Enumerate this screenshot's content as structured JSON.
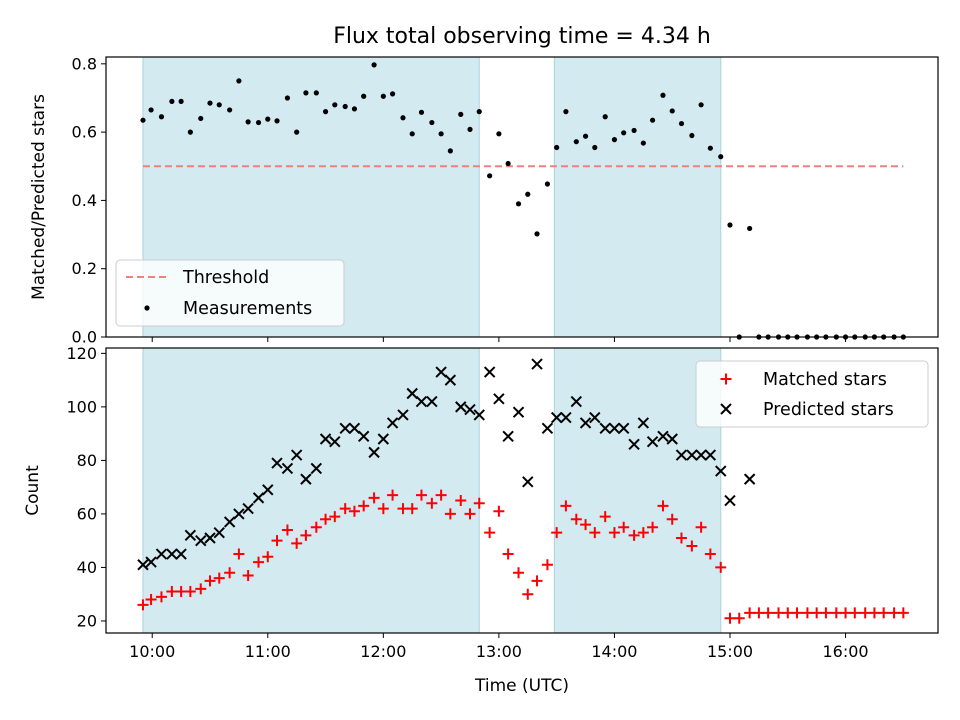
{
  "chart_data": {
    "title": "Flux total observing time = 4.34 h",
    "xlabel": "Time (UTC)",
    "x_ticks": [
      "10:00",
      "11:00",
      "12:00",
      "13:00",
      "14:00",
      "15:00",
      "16:00"
    ],
    "x_tick_values": [
      10,
      11,
      12,
      13,
      14,
      15,
      16
    ],
    "xlim": [
      9.6,
      16.8
    ],
    "shaded_intervals": [
      [
        9.92,
        12.83
      ],
      [
        13.48,
        14.92
      ]
    ],
    "shade_color": "#d2eaf0",
    "panels": [
      {
        "type": "scatter",
        "ylabel": "Matched/Predicted stars",
        "ylim": [
          0,
          0.82
        ],
        "y_ticks": [
          "0.0",
          "0.2",
          "0.4",
          "0.6",
          "0.8"
        ],
        "y_tick_values": [
          0,
          0.2,
          0.4,
          0.6,
          0.8
        ],
        "legend_position": "lower-left",
        "threshold": {
          "name": "Threshold",
          "value": 0.5,
          "x_range": [
            9.92,
            16.5
          ],
          "color": "#f08080"
        },
        "series": [
          {
            "name": "Measurements",
            "color": "#000000",
            "marker": "dot",
            "x": [
              9.92,
              9.99,
              10.08,
              10.17,
              10.25,
              10.33,
              10.42,
              10.5,
              10.58,
              10.67,
              10.75,
              10.83,
              10.92,
              11.0,
              11.08,
              11.17,
              11.25,
              11.33,
              11.42,
              11.5,
              11.58,
              11.67,
              11.75,
              11.83,
              11.92,
              12.0,
              12.08,
              12.17,
              12.25,
              12.33,
              12.42,
              12.5,
              12.58,
              12.67,
              12.75,
              12.83,
              12.92,
              13.0,
              13.08,
              13.17,
              13.25,
              13.33,
              13.42,
              13.5,
              13.58,
              13.67,
              13.75,
              13.83,
              13.92,
              14.0,
              14.08,
              14.17,
              14.25,
              14.33,
              14.42,
              14.5,
              14.58,
              14.67,
              14.75,
              14.83,
              14.92,
              15.0,
              15.08,
              15.17,
              15.25,
              15.33,
              15.42,
              15.5,
              15.58,
              15.67,
              15.75,
              15.83,
              15.92,
              16.0,
              16.08,
              16.17,
              16.25,
              16.33,
              16.42,
              16.5
            ],
            "y": [
              0.635,
              0.665,
              0.645,
              0.69,
              0.69,
              0.6,
              0.64,
              0.685,
              0.68,
              0.665,
              0.75,
              0.63,
              0.628,
              0.638,
              0.633,
              0.7,
              0.6,
              0.715,
              0.715,
              0.66,
              0.68,
              0.675,
              0.668,
              0.705,
              0.797,
              0.705,
              0.712,
              0.642,
              0.595,
              0.658,
              0.628,
              0.595,
              0.545,
              0.652,
              0.608,
              0.66,
              0.472,
              0.595,
              0.508,
              0.39,
              0.418,
              0.302,
              0.448,
              0.555,
              0.66,
              0.572,
              0.588,
              0.555,
              0.645,
              0.578,
              0.598,
              0.605,
              0.568,
              0.635,
              0.708,
              0.662,
              0.625,
              0.59,
              0.68,
              0.553,
              0.528,
              0.328,
              0.0,
              0.318,
              0.0,
              0.0,
              0.0,
              0.0,
              0.0,
              0.0,
              0.0,
              0.0,
              0.0,
              0.0,
              0.0,
              0.0,
              0.0,
              0.0,
              0.0,
              0.0
            ]
          }
        ]
      },
      {
        "type": "scatter",
        "ylabel": "Count",
        "ylim": [
          15.5,
          122
        ],
        "y_ticks": [
          "20",
          "40",
          "60",
          "80",
          "100",
          "120"
        ],
        "y_tick_values": [
          20,
          40,
          60,
          80,
          100,
          120
        ],
        "legend_position": "upper-right",
        "series": [
          {
            "name": "Matched stars",
            "color": "#ff0000",
            "marker": "plus",
            "x": [
              9.92,
              9.99,
              10.08,
              10.17,
              10.25,
              10.33,
              10.42,
              10.5,
              10.58,
              10.67,
              10.75,
              10.83,
              10.92,
              11.0,
              11.08,
              11.17,
              11.25,
              11.33,
              11.42,
              11.5,
              11.58,
              11.67,
              11.75,
              11.83,
              11.92,
              12.0,
              12.08,
              12.17,
              12.25,
              12.33,
              12.42,
              12.5,
              12.58,
              12.67,
              12.75,
              12.83,
              12.92,
              13.0,
              13.08,
              13.17,
              13.25,
              13.33,
              13.42,
              13.5,
              13.58,
              13.67,
              13.75,
              13.83,
              13.92,
              14.0,
              14.08,
              14.17,
              14.25,
              14.33,
              14.42,
              14.5,
              14.58,
              14.67,
              14.75,
              14.83,
              14.92,
              15.0,
              15.08,
              15.17,
              15.25,
              15.33,
              15.42,
              15.5,
              15.58,
              15.67,
              15.75,
              15.83,
              15.92,
              16.0,
              16.08,
              16.17,
              16.25,
              16.33,
              16.42,
              16.5
            ],
            "y": [
              26,
              28,
              29,
              31,
              31,
              31,
              32,
              35,
              36,
              38,
              45,
              37,
              42,
              44,
              50,
              54,
              49,
              52,
              55,
              58,
              59,
              62,
              61,
              63,
              66,
              62,
              67,
              62,
              62,
              67,
              64,
              67,
              60,
              65,
              60,
              64,
              53,
              61,
              45,
              38,
              30,
              35,
              41,
              53,
              63,
              58,
              56,
              53,
              59,
              53,
              55,
              52,
              53,
              55,
              63,
              58,
              51,
              48,
              55,
              45,
              40,
              21,
              21,
              23,
              23,
              23,
              23,
              23,
              23,
              23,
              23,
              23,
              23,
              23,
              23,
              23,
              23,
              23,
              23,
              23
            ]
          },
          {
            "name": "Predicted stars",
            "color": "#000000",
            "marker": "cross",
            "x": [
              9.92,
              9.99,
              10.08,
              10.17,
              10.25,
              10.33,
              10.42,
              10.5,
              10.58,
              10.67,
              10.75,
              10.83,
              10.92,
              11.0,
              11.08,
              11.17,
              11.25,
              11.33,
              11.42,
              11.5,
              11.58,
              11.67,
              11.75,
              11.83,
              11.92,
              12.0,
              12.08,
              12.17,
              12.25,
              12.33,
              12.42,
              12.5,
              12.58,
              12.67,
              12.75,
              12.83,
              12.92,
              13.0,
              13.08,
              13.17,
              13.25,
              13.33,
              13.42,
              13.5,
              13.58,
              13.67,
              13.75,
              13.83,
              13.92,
              14.0,
              14.08,
              14.17,
              14.25,
              14.33,
              14.42,
              14.5,
              14.58,
              14.67,
              14.75,
              14.83,
              14.92,
              15.0,
              15.17
            ],
            "y": [
              41,
              42,
              45,
              45,
              45,
              52,
              50,
              51,
              53,
              57,
              60,
              62,
              66,
              69,
              79,
              77,
              82,
              73,
              77,
              88,
              87,
              92,
              92,
              89,
              83,
              88,
              94,
              97,
              105,
              102,
              102,
              113,
              110,
              100,
              99,
              97,
              113,
              103,
              89,
              98,
              72,
              116,
              92,
              96,
              96,
              102,
              94,
              96,
              92,
              92,
              92,
              86,
              94,
              87,
              89,
              88,
              82,
              82,
              82,
              82,
              76,
              65,
              73
            ]
          }
        ]
      }
    ]
  }
}
